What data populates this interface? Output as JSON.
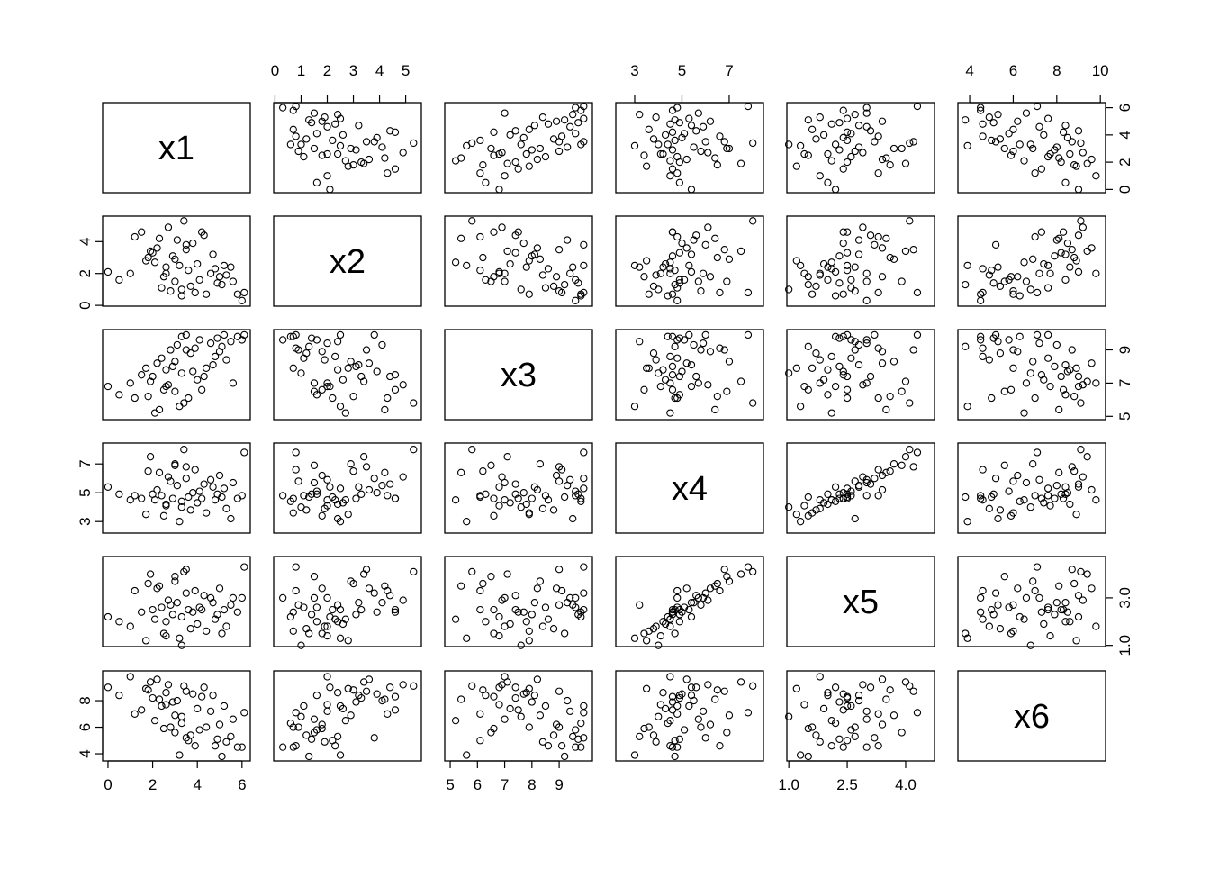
{
  "chart_data": {
    "type": "scatter_matrix",
    "point_color": "#000000",
    "variables": [
      {
        "name": "x1",
        "lim": [
          -0.24,
          6.37
        ],
        "xticks": [
          0,
          2,
          4,
          6
        ],
        "yticks": [
          0,
          2,
          4,
          6
        ],
        "values": [
          0.0,
          0.5,
          1.0,
          1.2,
          1.5,
          1.8,
          2.0,
          2.1,
          2.2,
          2.4,
          2.5,
          2.6,
          2.7,
          2.8,
          2.9,
          3.0,
          3.1,
          3.2,
          3.3,
          3.4,
          3.5,
          3.6,
          3.7,
          3.8,
          3.9,
          4.0,
          4.1,
          4.2,
          4.4,
          4.6,
          4.8,
          4.9,
          5.0,
          5.1,
          5.2,
          5.3,
          5.5,
          5.6,
          5.8,
          6.0,
          6.1,
          1.9,
          2.3,
          3.0,
          3.5,
          4.3,
          2.6,
          1.7,
          4.7,
          3.3
        ]
      },
      {
        "name": "x2",
        "lim": [
          -0.05,
          5.6
        ],
        "xticks": [
          0,
          1,
          2,
          3,
          4,
          5
        ],
        "yticks": [
          0,
          2,
          4
        ],
        "values": [
          2.1,
          1.6,
          2.0,
          4.3,
          4.6,
          3.0,
          3.3,
          2.7,
          3.6,
          1.1,
          1.8,
          2.4,
          4.9,
          0.9,
          3.1,
          1.5,
          4.1,
          2.5,
          0.6,
          5.3,
          3.8,
          2.2,
          1.2,
          3.9,
          0.8,
          2.6,
          1.6,
          4.6,
          0.7,
          2.0,
          2.3,
          1.4,
          1.8,
          1.3,
          2.5,
          1.9,
          2.4,
          1.5,
          0.7,
          0.3,
          0.8,
          3.4,
          4.2,
          2.9,
          3.5,
          4.4,
          2.0,
          2.8,
          3.2,
          1.0
        ]
      },
      {
        "name": "x3",
        "lim": [
          4.8,
          10.22
        ],
        "xticks": [
          5,
          6,
          7,
          8,
          9
        ],
        "yticks": [
          5,
          7,
          9
        ],
        "values": [
          6.8,
          6.3,
          7.0,
          6.1,
          7.5,
          6.2,
          7.4,
          5.2,
          8.2,
          8.5,
          6.6,
          7.8,
          6.9,
          9.0,
          8.0,
          6.5,
          9.3,
          5.6,
          9.8,
          5.8,
          9.9,
          6.1,
          8.8,
          7.7,
          9.1,
          7.2,
          9.6,
          6.6,
          7.9,
          9.4,
          8.6,
          9.7,
          8.9,
          9.2,
          9.9,
          8.4,
          9.5,
          7.0,
          9.8,
          9.6,
          9.9,
          7.1,
          5.4,
          8.3,
          9.0,
          7.4,
          6.8,
          7.9,
          8.1,
          7.6
        ]
      },
      {
        "name": "x4",
        "lim": [
          2.2,
          8.45
        ],
        "xticks": [
          3,
          5,
          7
        ],
        "yticks": [
          3,
          5,
          7
        ],
        "values": [
          5.4,
          4.9,
          4.5,
          4.8,
          4.6,
          6.5,
          4.9,
          4.5,
          5.2,
          4.8,
          3.4,
          4.2,
          6.1,
          5.8,
          4.6,
          6.9,
          5.5,
          3.0,
          4.4,
          8.0,
          6.0,
          4.7,
          3.8,
          5.0,
          6.6,
          4.3,
          5.1,
          4.6,
          3.6,
          5.9,
          4.5,
          4.9,
          6.2,
          4.7,
          5.3,
          3.9,
          3.2,
          5.7,
          4.6,
          4.8,
          7.8,
          7.5,
          6.4,
          7.0,
          6.8,
          5.6,
          4.1,
          3.5,
          5.4,
          4.0
        ]
      },
      {
        "name": "x5",
        "lim": [
          0.95,
          4.74
        ],
        "xticks": [
          {
            "value": 1,
            "label": "1.0"
          },
          2.5,
          {
            "value": 4,
            "label": "4.0"
          }
        ],
        "yticks": [
          {
            "value": 1,
            "label": "1.0"
          },
          {
            "value": 3,
            "label": "3.0"
          }
        ],
        "values": [
          2.2,
          2.0,
          1.8,
          3.3,
          2.4,
          3.6,
          2.5,
          2.1,
          3.4,
          2.6,
          1.5,
          2.0,
          2.9,
          2.7,
          2.3,
          3.9,
          2.8,
          1.3,
          2.2,
          4.1,
          3.2,
          2.5,
          1.7,
          2.4,
          3.3,
          1.9,
          2.6,
          2.5,
          1.6,
          3.0,
          2.1,
          2.3,
          3.4,
          1.5,
          2.5,
          1.8,
          2.7,
          3.0,
          2.4,
          3.0,
          4.3,
          4.0,
          3.5,
          3.7,
          4.2,
          3.1,
          1.4,
          1.2,
          2.8,
          1.0
        ]
      },
      {
        "name": "x6",
        "lim": [
          3.46,
          10.24
        ],
        "xticks": [
          4,
          6,
          8,
          10
        ],
        "yticks": [
          4,
          6,
          8
        ],
        "values": [
          9.0,
          8.4,
          9.8,
          7.0,
          7.3,
          8.8,
          8.2,
          6.5,
          9.6,
          7.6,
          5.9,
          8.6,
          9.2,
          6.0,
          7.9,
          5.6,
          8.0,
          3.9,
          6.3,
          9.1,
          5.2,
          5.0,
          5.4,
          8.5,
          4.6,
          7.4,
          5.8,
          8.3,
          6.0,
          7.2,
          4.6,
          5.1,
          6.2,
          3.8,
          7.6,
          4.9,
          5.3,
          6.6,
          4.5,
          4.5,
          7.1,
          9.4,
          8.1,
          6.9,
          8.7,
          9.0,
          7.7,
          8.9,
          8.4,
          6.8
        ]
      }
    ]
  }
}
